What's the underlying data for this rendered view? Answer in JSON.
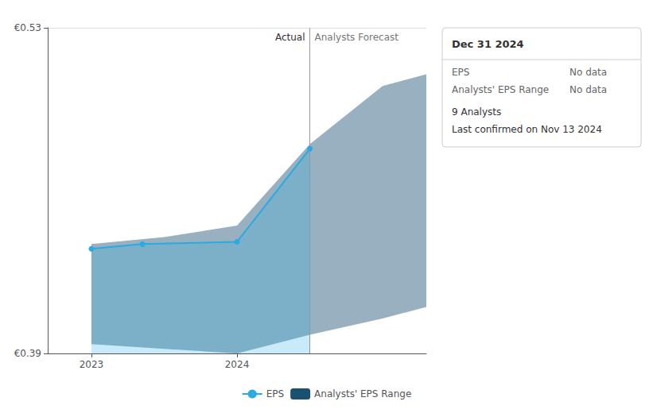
{
  "chart_data": {
    "type": "line",
    "xlim": [
      2022.7,
      2025.3
    ],
    "xticks": [
      2023,
      2024
    ],
    "ylim": [
      0.39,
      0.53
    ],
    "yticks": [
      {
        "value": 0.39,
        "label": "€0.39"
      },
      {
        "value": 0.53,
        "label": "€0.53"
      }
    ],
    "grid": true,
    "legend": "bottom",
    "series": [
      {
        "name": "EPS",
        "type": "line",
        "color": "#29abe2",
        "marker": "circle",
        "x": [
          2023.0,
          2023.35,
          2024.0,
          2024.5
        ],
        "values": [
          0.435,
          0.437,
          0.438,
          0.478
        ]
      },
      {
        "name": "Analysts' EPS Range",
        "type": "range",
        "color": "#1a5070",
        "x": [
          2023.0,
          2023.5,
          2024.0,
          2024.5,
          2025.0,
          2025.3
        ],
        "upper": [
          0.437,
          0.44,
          0.445,
          0.48,
          0.505,
          0.51
        ],
        "lower": [
          0.394,
          0.392,
          0.39,
          0.398,
          0.405,
          0.41
        ]
      }
    ],
    "divider": {
      "x": 2024.5,
      "left_label": "Actual",
      "right_label": "Analysts Forecast"
    },
    "info_box": {
      "title": "Dec 31 2024",
      "rows": [
        [
          "EPS",
          "No data"
        ],
        [
          "Analysts' EPS Range",
          "No data"
        ]
      ],
      "notes": [
        "9 Analysts",
        "Last confirmed on Nov 13 2024"
      ]
    }
  }
}
